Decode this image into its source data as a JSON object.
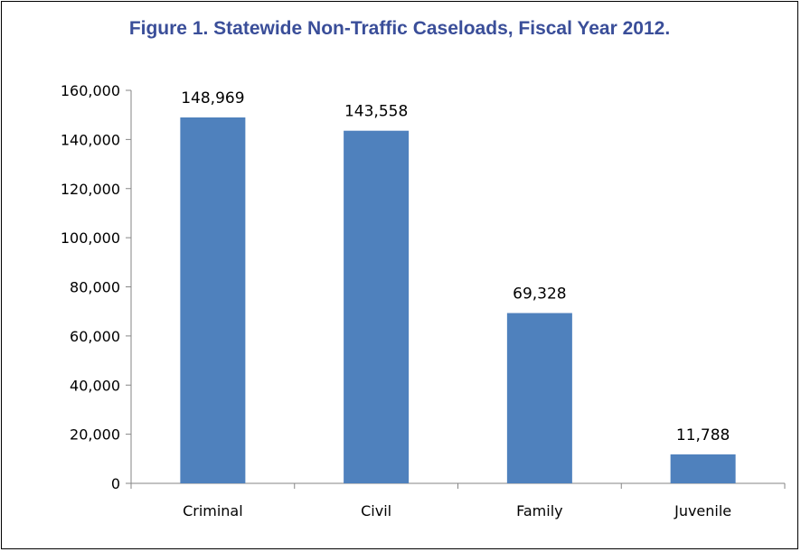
{
  "chart_data": {
    "type": "bar",
    "title": "Figure 1. Statewide Non-Traffic Caseloads, Fiscal Year 2012.",
    "categories": [
      "Criminal",
      "Civil",
      "Family",
      "Juvenile"
    ],
    "values": [
      148969,
      143558,
      69328,
      11788
    ],
    "data_labels": [
      "148,969",
      "143,558",
      "69,328",
      "11,788"
    ],
    "ylim": [
      0,
      160000
    ],
    "yticks": [
      0,
      20000,
      40000,
      60000,
      80000,
      100000,
      120000,
      140000,
      160000
    ],
    "ytick_labels": [
      "0",
      "20,000",
      "40,000",
      "60,000",
      "80,000",
      "100,000",
      "120,000",
      "140,000",
      "160,000"
    ],
    "xlabel": "",
    "ylabel": "",
    "grid": false,
    "legend": "none",
    "colors": {
      "bar": "#4F81BD",
      "title": "#3A4E99",
      "axis": "#868686",
      "border": "#000000"
    }
  }
}
